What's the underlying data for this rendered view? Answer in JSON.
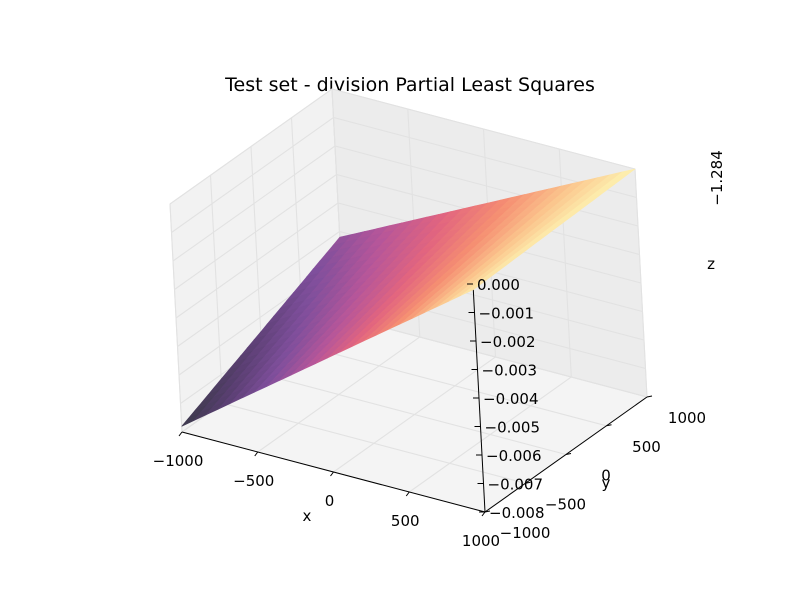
{
  "chart_data": {
    "type": "surface3d",
    "title": "Test set - division Partial Least Squares",
    "xlabel": "x",
    "ylabel": "y",
    "zlabel": "z",
    "z_offset_label": "−1.284",
    "xlim": [
      -1000,
      1000
    ],
    "ylim": [
      -1000,
      1000
    ],
    "zlim": [
      -0.008,
      0.0
    ],
    "x_ticks": [
      -1000,
      -500,
      0,
      500,
      1000
    ],
    "x_tick_labels": [
      "−1000",
      "−500",
      "0",
      "500",
      "1000"
    ],
    "y_ticks": [
      -1000,
      -500,
      0,
      500,
      1000
    ],
    "y_tick_labels": [
      "−1000",
      "−500",
      "0",
      "500",
      "1000"
    ],
    "z_ticks": [
      0.0,
      -0.001,
      -0.002,
      -0.003,
      -0.004,
      -0.005,
      -0.006,
      -0.007,
      -0.008
    ],
    "z_tick_labels": [
      "0.000",
      "−0.001",
      "−0.002",
      "−0.003",
      "−0.004",
      "−0.005",
      "−0.006",
      "−0.007",
      "−0.008"
    ],
    "colormap": "magma",
    "colormap_stops": [
      "#3b3a4a",
      "#5a3f72",
      "#7f4f9c",
      "#b5569a",
      "#e2657f",
      "#f58e72",
      "#fbc58d",
      "#fdf1b0"
    ],
    "surface_corners": [
      {
        "x": -1000,
        "y": -1000,
        "z": -0.0078
      },
      {
        "x": -1000,
        "y": 1000,
        "z": -0.0052
      },
      {
        "x": 1000,
        "y": -1000,
        "z": -0.0002
      },
      {
        "x": 1000,
        "y": 1000,
        "z": 0.0
      }
    ],
    "grid": true
  }
}
